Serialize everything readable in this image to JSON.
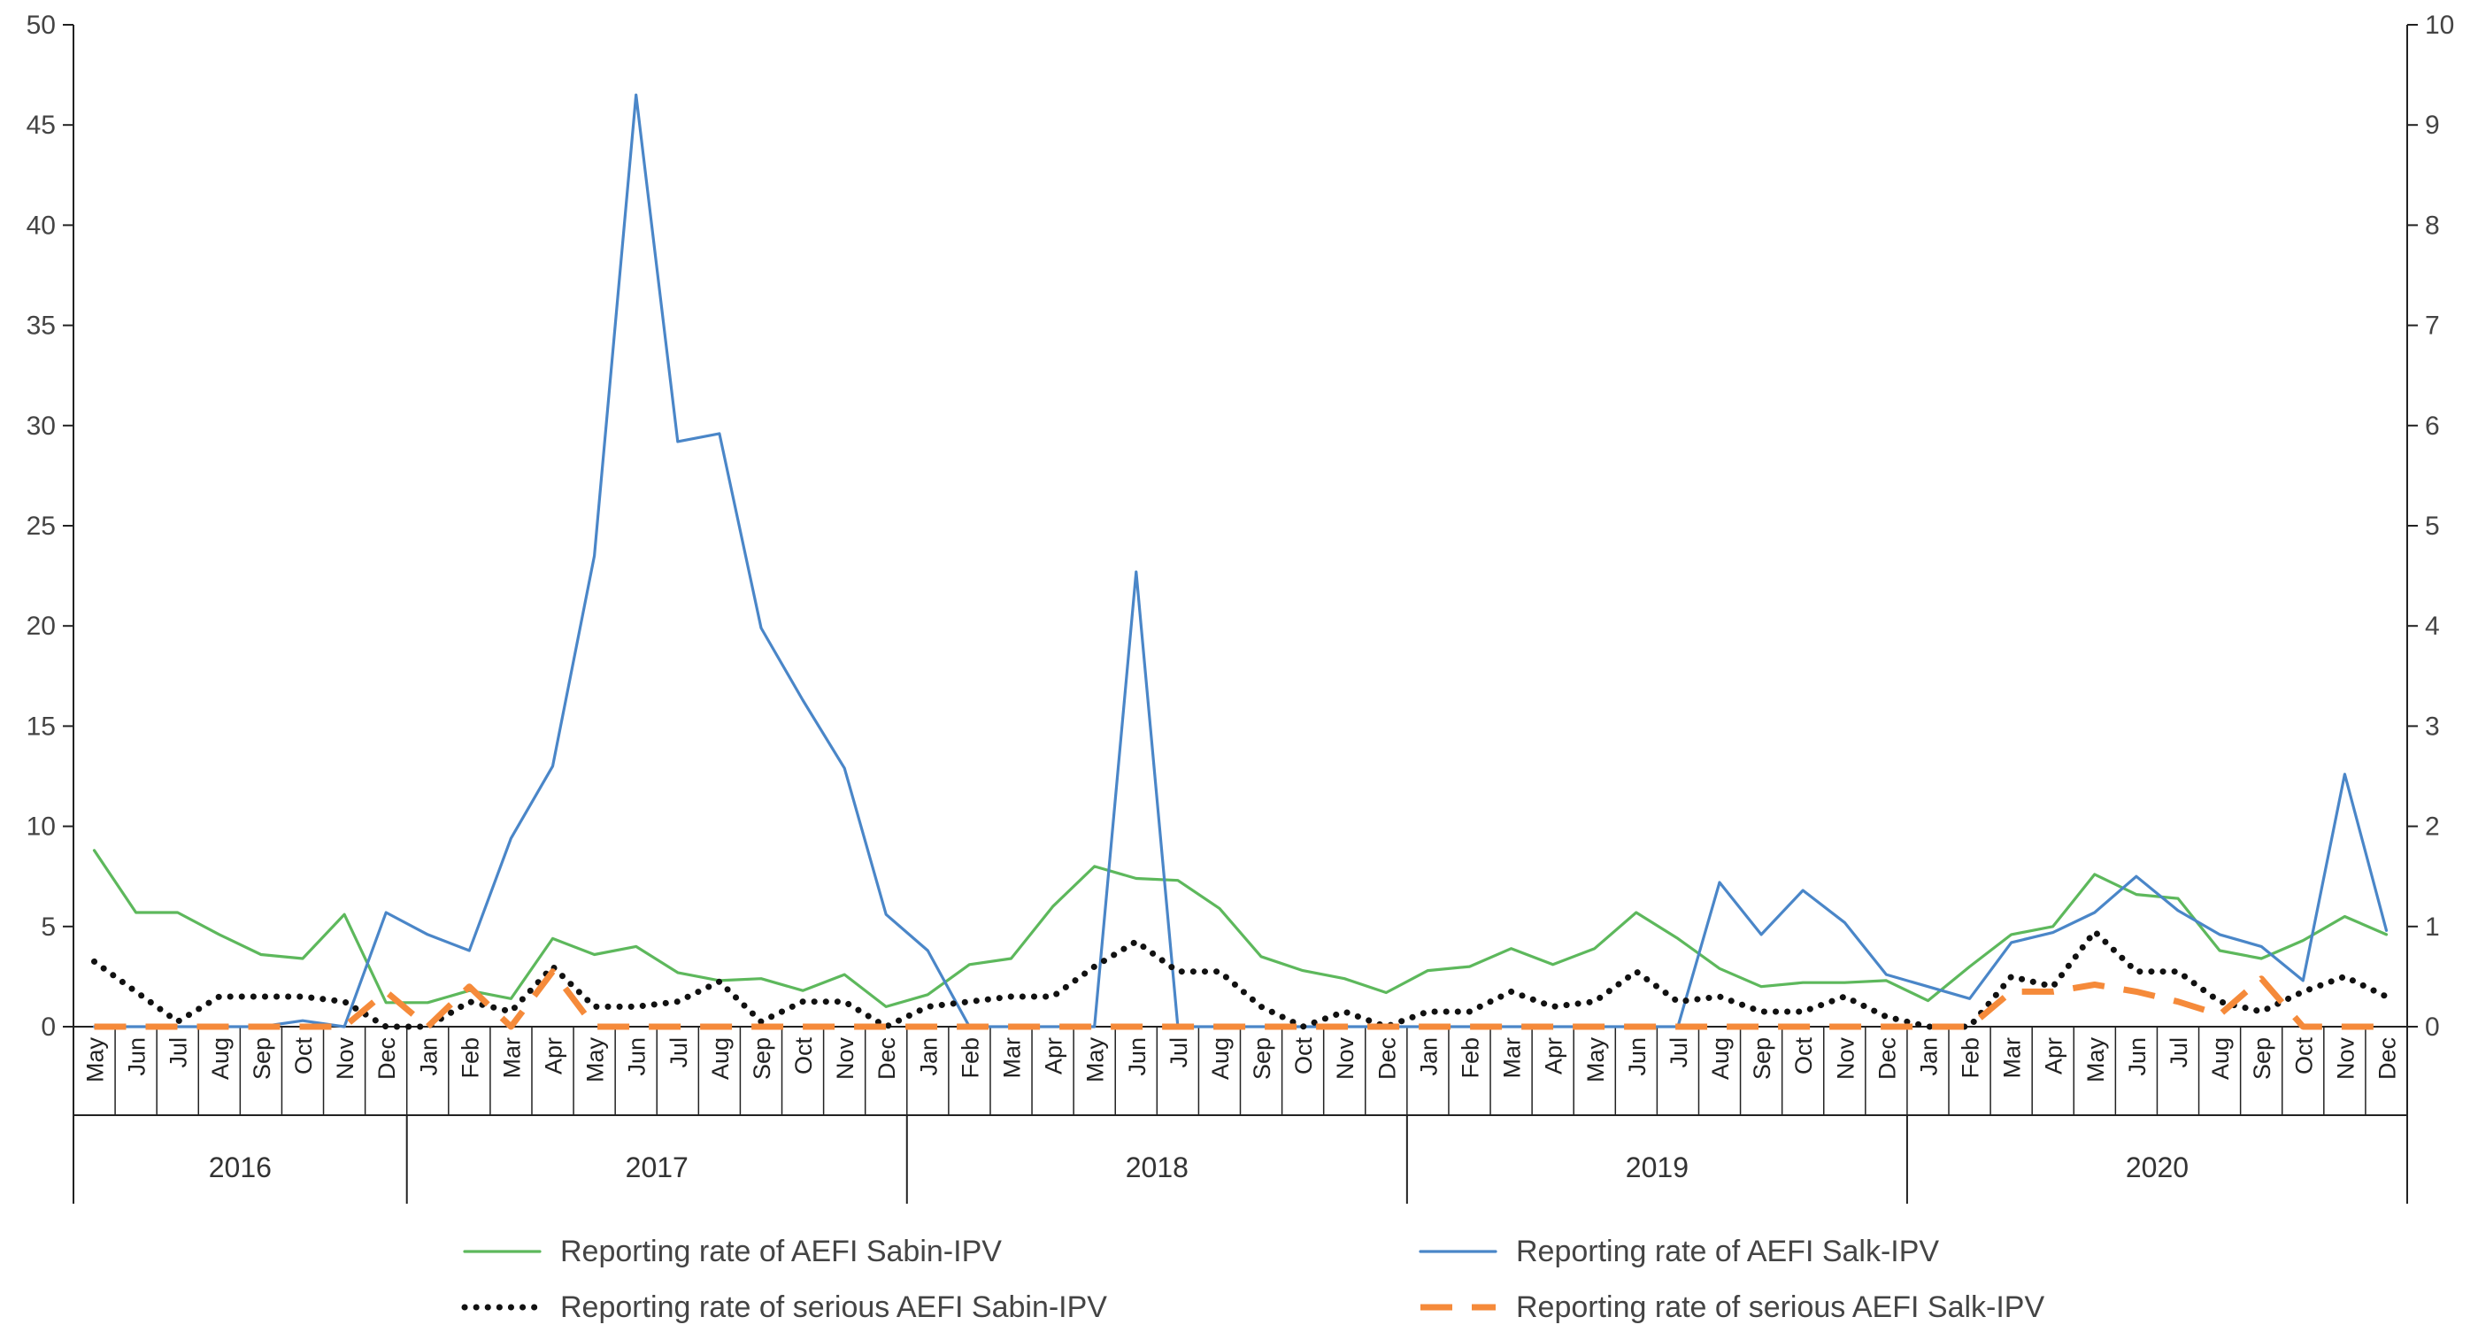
{
  "chart_data": {
    "type": "line",
    "title": "",
    "xlabel": "",
    "ylabel_left": "",
    "ylabel_right": "",
    "y_left": {
      "min": 0,
      "max": 50,
      "ticks": [
        "0",
        "5",
        "10",
        "15",
        "20",
        "25",
        "30",
        "35",
        "40",
        "45",
        "50"
      ]
    },
    "y_right": {
      "min": 0,
      "max": 10,
      "ticks": [
        "0",
        "1",
        "2",
        "3",
        "4",
        "5",
        "6",
        "7",
        "8",
        "9",
        "10"
      ]
    },
    "categories": [
      "May",
      "Jun",
      "Jul",
      "Aug",
      "Sep",
      "Oct",
      "Nov",
      "Dec",
      "Jan",
      "Feb",
      "Mar",
      "Apr",
      "May",
      "Jun",
      "Jul",
      "Aug",
      "Sep",
      "Oct",
      "Nov",
      "Dec",
      "Jan",
      "Feb",
      "Mar",
      "Apr",
      "May",
      "Jun",
      "Jul",
      "Aug",
      "Sep",
      "Oct",
      "Nov",
      "Dec",
      "Jan",
      "Feb",
      "Mar",
      "Apr",
      "May",
      "Jun",
      "Jul",
      "Aug",
      "Sep",
      "Oct",
      "Nov",
      "Dec",
      "Jan",
      "Feb",
      "Mar",
      "Apr",
      "May",
      "Jun",
      "Jul",
      "Aug",
      "Sep",
      "Oct",
      "Nov",
      "Dec"
    ],
    "years": [
      {
        "label": "2016",
        "count": 8
      },
      {
        "label": "2017",
        "count": 12
      },
      {
        "label": "2018",
        "count": 12
      },
      {
        "label": "2019",
        "count": 12
      },
      {
        "label": "2020",
        "count": 12
      }
    ],
    "series": [
      {
        "name": "Reporting rate of AEFI Sabin-IPV",
        "axis": "left",
        "color": "#5db85c",
        "style": "solid",
        "values": [
          8.8,
          5.7,
          5.7,
          4.6,
          3.6,
          3.4,
          5.6,
          1.2,
          1.2,
          1.8,
          1.4,
          4.4,
          3.6,
          4.0,
          2.7,
          2.3,
          2.4,
          1.8,
          2.6,
          1.0,
          1.6,
          3.1,
          3.4,
          6.0,
          8.0,
          7.4,
          7.3,
          5.9,
          3.5,
          2.8,
          2.4,
          1.7,
          2.8,
          3.0,
          3.9,
          3.1,
          3.9,
          5.7,
          4.4,
          2.9,
          2.0,
          2.2,
          2.2,
          2.3,
          1.3,
          3.0,
          4.6,
          5.0,
          7.6,
          6.6,
          6.4,
          3.8,
          3.4,
          4.3,
          5.5,
          4.6
        ]
      },
      {
        "name": "Reporting rate of AEFI Salk-IPV",
        "axis": "left",
        "color": "#4a86c8",
        "style": "solid",
        "values": [
          0,
          0,
          0,
          0,
          0,
          0.3,
          0,
          5.7,
          4.6,
          3.8,
          9.4,
          13.0,
          23.5,
          46.5,
          29.2,
          29.6,
          19.9,
          16.3,
          12.9,
          5.6,
          3.8,
          0,
          0,
          0,
          0,
          22.7,
          0,
          0,
          0,
          0,
          0,
          0,
          0,
          0,
          0,
          0,
          0,
          0,
          0,
          7.2,
          4.6,
          6.8,
          5.2,
          2.6,
          2.0,
          1.4,
          4.2,
          4.7,
          5.7,
          7.5,
          5.8,
          4.6,
          4.0,
          2.3,
          12.6,
          4.8
        ]
      },
      {
        "name": "Reporting rate of serious AEFI Sabin-IPV",
        "axis": "right",
        "color": "#111111",
        "style": "dotted",
        "values": [
          0.65,
          0.35,
          0.05,
          0.3,
          0.3,
          0.3,
          0.25,
          0,
          0,
          0.25,
          0.15,
          0.6,
          0.2,
          0.2,
          0.25,
          0.45,
          0.05,
          0.25,
          0.25,
          0,
          0.2,
          0.25,
          0.3,
          0.3,
          0.6,
          0.85,
          0.55,
          0.55,
          0.2,
          0,
          0.15,
          0,
          0.15,
          0.15,
          0.35,
          0.2,
          0.25,
          0.55,
          0.25,
          0.3,
          0.15,
          0.15,
          0.3,
          0.1,
          0,
          0,
          0.5,
          0.4,
          0.95,
          0.55,
          0.55,
          0.25,
          0.15,
          0.35,
          0.5,
          0.3
        ]
      },
      {
        "name": "Reporting rate of serious AEFI Salk-IPV",
        "axis": "right",
        "color": "#f58a3a",
        "style": "dashed",
        "values": [
          0,
          0,
          0,
          0,
          0,
          0,
          0,
          0.35,
          0,
          0.4,
          0,
          0.55,
          0,
          0,
          0,
          0,
          0,
          0,
          0,
          0,
          0,
          0,
          0,
          0,
          0,
          0,
          0,
          0,
          0,
          0,
          0,
          0,
          0,
          0,
          0,
          0,
          0,
          0,
          0,
          0,
          0,
          0,
          0,
          0,
          0,
          0,
          0.35,
          0.35,
          0.42,
          0.35,
          0.25,
          0.12,
          0.48,
          0,
          0,
          0
        ]
      }
    ],
    "legend": {
      "position": "bottom"
    }
  }
}
